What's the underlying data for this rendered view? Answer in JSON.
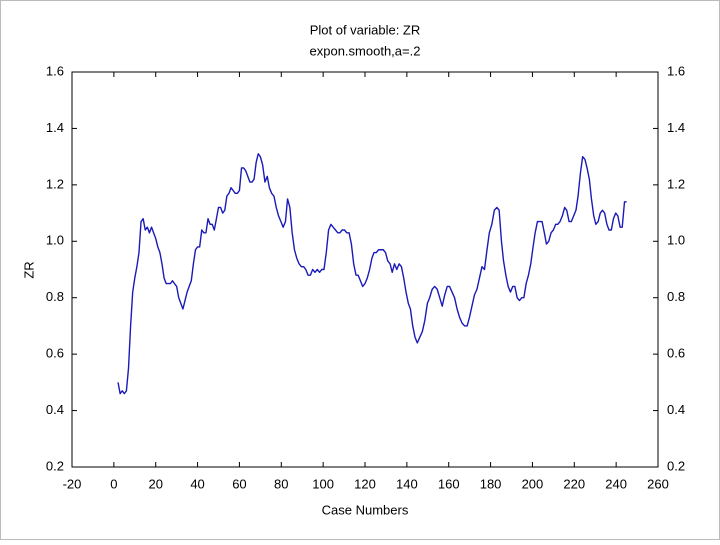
{
  "chart_data": {
    "type": "line",
    "title": "Plot of variable: ZR",
    "subtitle": "expon.smooth,a=.2",
    "xlabel": "Case Numbers",
    "ylabel": "ZR",
    "color": "#1a1ab8",
    "xlim": [
      -20,
      260
    ],
    "xticks": [
      -20,
      0,
      20,
      40,
      60,
      80,
      100,
      120,
      140,
      160,
      180,
      200,
      220,
      240,
      260
    ],
    "ylim": [
      0.2,
      1.6
    ],
    "yticks": [
      0.2,
      0.4,
      0.6,
      0.8,
      {
        "value": 1,
        "label": "1.0"
      },
      1.2,
      1.4,
      1.6
    ],
    "grid": false,
    "x": [
      2,
      3,
      4,
      5,
      6,
      7,
      8,
      9,
      10,
      11,
      12,
      13,
      14,
      15,
      16,
      17,
      18,
      19,
      20,
      21,
      22,
      23,
      24,
      25,
      26,
      27,
      28,
      29,
      30,
      31,
      32,
      33,
      34,
      35,
      36,
      37,
      38,
      39,
      40,
      41,
      42,
      43,
      44,
      45,
      46,
      47,
      48,
      49,
      50,
      51,
      52,
      53,
      54,
      55,
      56,
      57,
      58,
      59,
      60,
      61,
      62,
      63,
      64,
      65,
      66,
      67,
      68,
      69,
      70,
      71.1,
      72.2,
      73.3,
      74.3,
      75.4,
      76.5,
      77.6,
      78.7,
      79.8,
      80.9,
      82.0,
      83.0,
      84.1,
      85.2,
      86.3,
      87.4,
      88.5,
      89.6,
      90.7,
      91.7,
      92.8,
      93.9,
      95.0,
      96.1,
      97.2,
      98.3,
      99.3,
      100.4,
      101.5,
      102.6,
      103.7,
      104.8,
      105.9,
      107.0,
      108.0,
      109.1,
      110.2,
      111.3,
      112.4,
      113.5,
      114.6,
      115.7,
      116.7,
      117.8,
      118.9,
      120.0,
      121.1,
      122.2,
      123.3,
      124.3,
      125.4,
      126.5,
      127.6,
      128.7,
      129.8,
      130.9,
      132.0,
      133.0,
      134.1,
      135.2,
      136.3,
      137.4,
      138.5,
      139.6,
      140.7,
      141.7,
      142.8,
      143.9,
      145.0,
      146.2,
      147.4,
      148.6,
      149.8,
      150.9,
      152.1,
      153.3,
      154.5,
      155.7,
      156.9,
      158.1,
      159.3,
      160.4,
      161.6,
      162.8,
      164.0,
      165.2,
      166.4,
      167.6,
      168.8,
      169.9,
      171.1,
      172.3,
      173.5,
      174.7,
      175.9,
      177.1,
      178.3,
      179.4,
      180.6,
      181.8,
      183.0,
      184.1,
      185.2,
      186.2,
      187.3,
      188.4,
      189.5,
      190.6,
      191.6,
      192.7,
      193.8,
      194.9,
      195.9,
      197.0,
      198.1,
      199.2,
      200.3,
      201.3,
      202.4,
      203.5,
      204.6,
      205.7,
      206.7,
      207.8,
      208.9,
      210.0,
      211.1,
      212.1,
      213.2,
      214.3,
      215.4,
      216.4,
      217.5,
      218.6,
      219.7,
      220.8,
      221.8,
      222.9,
      224.0,
      225.1,
      226.1,
      227.2,
      228.2,
      229.3,
      230.3,
      231.4,
      232.4,
      233.5,
      234.5,
      235.6,
      236.6,
      237.7,
      238.7,
      239.8,
      240.8,
      241.9,
      242.9,
      244.0,
      245.0
    ],
    "values": [
      0.5,
      0.46,
      0.47,
      0.46,
      0.47,
      0.55,
      0.7,
      0.82,
      0.87,
      0.91,
      0.96,
      1.07,
      1.08,
      1.04,
      1.05,
      1.03,
      1.05,
      1.03,
      1.01,
      0.98,
      0.96,
      0.92,
      0.87,
      0.85,
      0.85,
      0.85,
      0.86,
      0.85,
      0.84,
      0.8,
      0.78,
      0.76,
      0.79,
      0.82,
      0.84,
      0.86,
      0.92,
      0.97,
      0.98,
      0.98,
      1.04,
      1.03,
      1.03,
      1.08,
      1.06,
      1.06,
      1.04,
      1.08,
      1.12,
      1.12,
      1.1,
      1.11,
      1.16,
      1.17,
      1.19,
      1.18,
      1.17,
      1.17,
      1.18,
      1.26,
      1.26,
      1.25,
      1.23,
      1.21,
      1.21,
      1.22,
      1.28,
      1.31,
      1.3,
      1.27,
      1.21,
      1.23,
      1.19,
      1.17,
      1.16,
      1.12,
      1.09,
      1.07,
      1.05,
      1.07,
      1.15,
      1.12,
      1.03,
      0.97,
      0.94,
      0.92,
      0.91,
      0.91,
      0.9,
      0.88,
      0.88,
      0.9,
      0.89,
      0.9,
      0.89,
      0.9,
      0.9,
      0.96,
      1.04,
      1.06,
      1.05,
      1.04,
      1.03,
      1.03,
      1.04,
      1.04,
      1.03,
      1.03,
      0.99,
      0.92,
      0.88,
      0.88,
      0.86,
      0.84,
      0.85,
      0.87,
      0.9,
      0.94,
      0.96,
      0.96,
      0.97,
      0.97,
      0.97,
      0.96,
      0.93,
      0.92,
      0.89,
      0.92,
      0.9,
      0.92,
      0.91,
      0.87,
      0.82,
      0.78,
      0.76,
      0.7,
      0.66,
      0.64,
      0.66,
      0.68,
      0.72,
      0.78,
      0.8,
      0.83,
      0.84,
      0.83,
      0.8,
      0.77,
      0.81,
      0.84,
      0.84,
      0.82,
      0.8,
      0.76,
      0.73,
      0.71,
      0.7,
      0.7,
      0.73,
      0.77,
      0.81,
      0.83,
      0.87,
      0.91,
      0.9,
      0.97,
      1.03,
      1.06,
      1.11,
      1.12,
      1.11,
      1.0,
      0.93,
      0.88,
      0.84,
      0.82,
      0.84,
      0.84,
      0.8,
      0.79,
      0.8,
      0.8,
      0.85,
      0.88,
      0.92,
      0.98,
      1.03,
      1.07,
      1.07,
      1.07,
      1.03,
      0.99,
      1.0,
      1.03,
      1.04,
      1.06,
      1.06,
      1.07,
      1.09,
      1.12,
      1.11,
      1.07,
      1.07,
      1.09,
      1.11,
      1.16,
      1.24,
      1.3,
      1.29,
      1.26,
      1.22,
      1.15,
      1.09,
      1.06,
      1.07,
      1.1,
      1.11,
      1.1,
      1.06,
      1.04,
      1.04,
      1.08,
      1.1,
      1.09,
      1.05,
      1.05,
      1.14,
      1.14
    ]
  }
}
